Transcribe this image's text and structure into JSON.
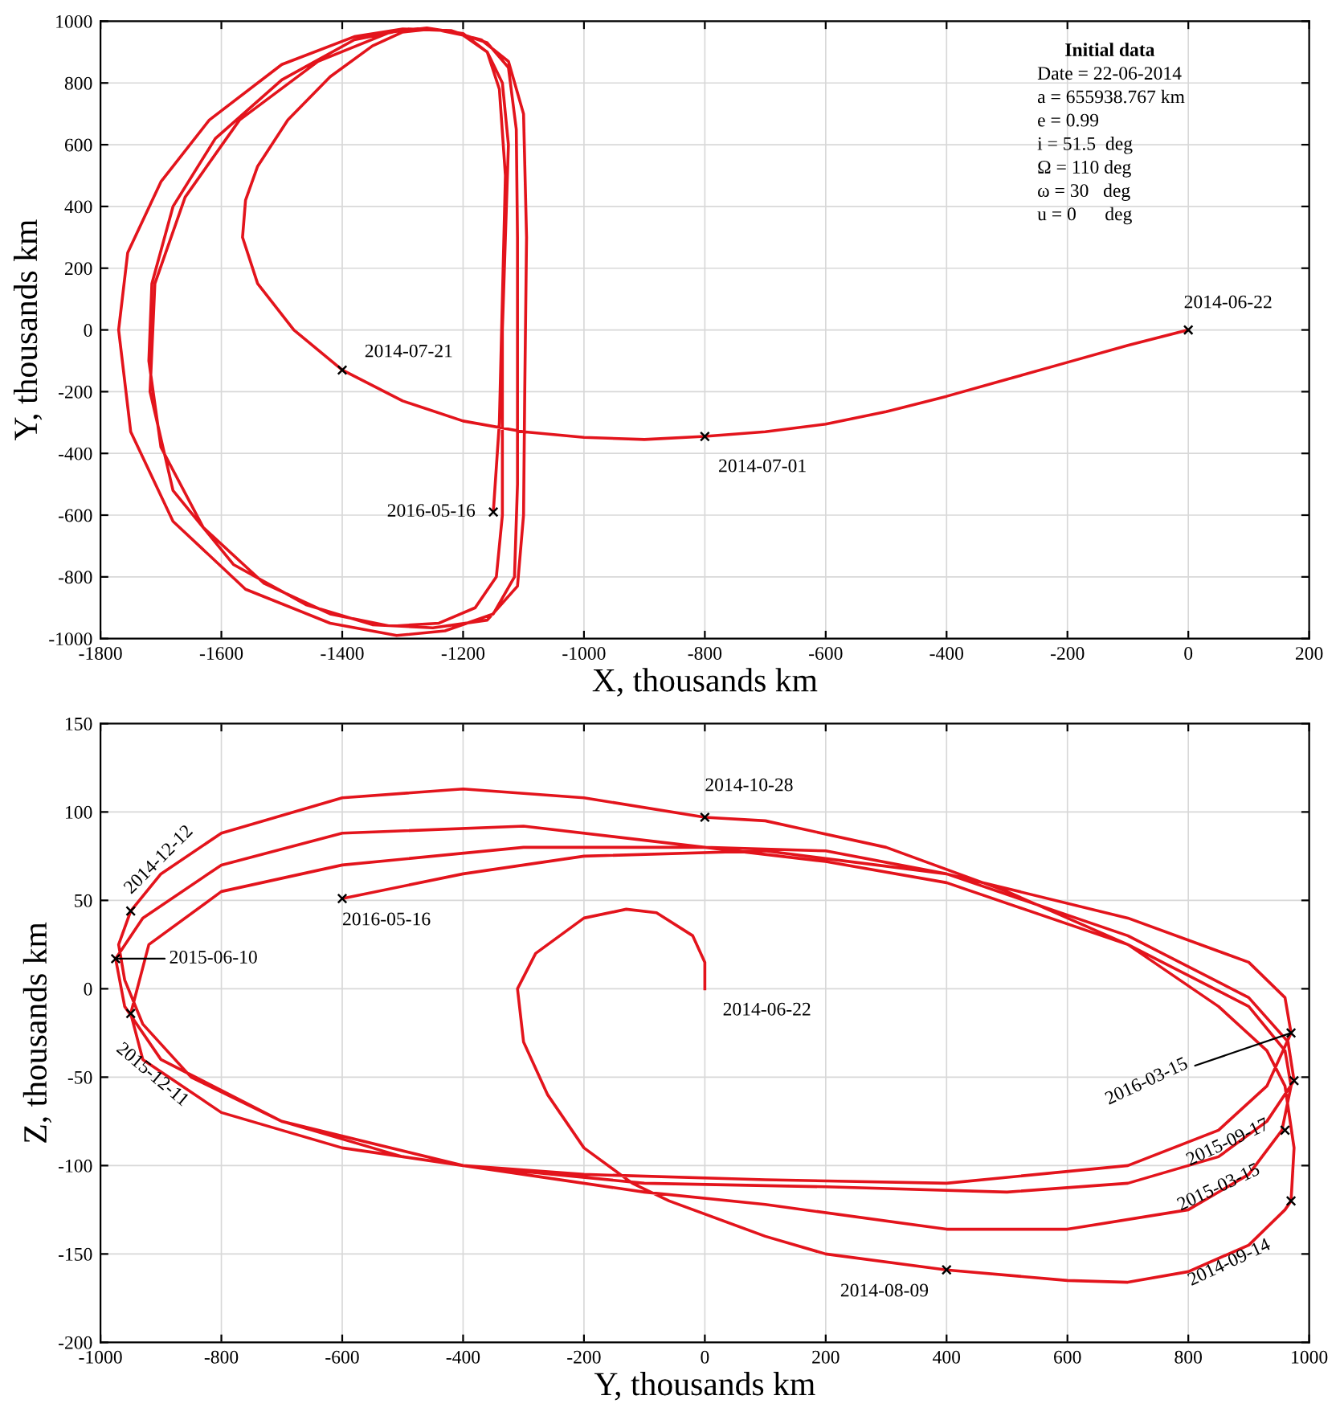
{
  "chart_data": [
    {
      "type": "line",
      "xlabel": "X, thousands km",
      "ylabel": "Y, thousands km",
      "xlim": [
        -1800,
        200
      ],
      "ylim": [
        -1000,
        1000
      ],
      "xticks": [
        -1800,
        -1600,
        -1400,
        -1200,
        -1000,
        -800,
        -600,
        -400,
        -200,
        0,
        200
      ],
      "yticks": [
        -1000,
        -800,
        -600,
        -400,
        -200,
        0,
        200,
        400,
        600,
        800,
        1000
      ],
      "grid": true,
      "legend": false,
      "series": [
        {
          "color": "#e3141c",
          "line_style": "solid",
          "marker": "none",
          "x": [
            0,
            -100,
            -200,
            -300,
            -400,
            -500,
            -600,
            -700,
            -800,
            -900,
            -1000,
            -1100,
            -1200,
            -1300,
            -1400,
            -1480,
            -1540,
            -1565,
            -1560,
            -1540,
            -1490,
            -1420,
            -1350,
            -1300,
            -1250,
            -1200,
            -1160,
            -1135,
            -1125,
            -1130,
            -1135,
            -1135,
            -1135,
            -1145,
            -1180,
            -1240,
            -1320,
            -1420,
            -1530,
            -1630,
            -1700,
            -1720,
            -1715,
            -1680,
            -1610,
            -1500,
            -1380,
            -1290,
            -1220,
            -1160,
            -1125,
            -1112,
            -1110,
            -1110,
            -1110,
            -1115,
            -1150,
            -1230,
            -1310,
            -1420,
            -1560,
            -1680,
            -1750,
            -1770,
            -1755,
            -1700,
            -1620,
            -1500,
            -1380,
            -1300,
            -1230,
            -1170,
            -1125,
            -1100,
            -1095,
            -1098,
            -1100,
            -1110,
            -1160,
            -1250,
            -1350,
            -1460,
            -1580,
            -1680,
            -1718,
            -1710,
            -1660,
            -1570,
            -1440,
            -1320,
            -1260,
            -1200,
            -1160,
            -1140,
            -1130,
            -1135,
            -1140,
            -1150
          ],
          "values": [
            0,
            -50,
            -105,
            -160,
            -215,
            -265,
            -305,
            -330,
            -345,
            -355,
            -348,
            -330,
            -295,
            -230,
            -130,
            0,
            150,
            300,
            420,
            530,
            680,
            820,
            920,
            965,
            975,
            955,
            900,
            800,
            600,
            300,
            0,
            -300,
            -600,
            -800,
            -900,
            -950,
            -960,
            -920,
            -820,
            -640,
            -380,
            -100,
            150,
            400,
            620,
            810,
            940,
            975,
            970,
            930,
            850,
            650,
            300,
            -100,
            -500,
            -800,
            -920,
            -975,
            -990,
            -950,
            -840,
            -620,
            -330,
            0,
            250,
            480,
            680,
            860,
            950,
            975,
            970,
            940,
            870,
            700,
            300,
            -200,
            -600,
            -830,
            -940,
            -965,
            -955,
            -890,
            -760,
            -520,
            -200,
            150,
            430,
            680,
            870,
            965,
            978,
            960,
            900,
            780,
            500,
            100,
            -300,
            -590
          ]
        },
        {
          "type": "scatter",
          "color": "#000000",
          "marker": "cross",
          "x": [
            0,
            -800,
            -1400,
            -1150
          ],
          "values": [
            0,
            -345,
            -130,
            -590
          ]
        }
      ],
      "annotations": [
        {
          "text": "2014-06-22",
          "x": 0,
          "y": 0
        },
        {
          "text": "2014-07-01",
          "x": -800,
          "y": -345
        },
        {
          "text": "2014-07-21",
          "x": -1400,
          "y": -130
        },
        {
          "text": "2016-05-16",
          "x": -1150,
          "y": -590
        },
        "Initial data",
        "Date = 22-06-2014",
        "a = 655938.767 km",
        "e = 0.99",
        "i = 51.5  deg",
        "Ω = 110 deg",
        "ω = 30   deg",
        "u = 0      deg"
      ]
    },
    {
      "type": "line",
      "xlabel": "Y, thousands km",
      "ylabel": "Z, thousands km",
      "xlim": [
        -1000,
        1000
      ],
      "ylim": [
        -200,
        150
      ],
      "xticks": [
        -1000,
        -800,
        -600,
        -400,
        -200,
        0,
        200,
        400,
        600,
        800,
        1000
      ],
      "yticks": [
        -200,
        -150,
        -100,
        -50,
        0,
        50,
        100,
        150
      ],
      "grid": true,
      "legend": false,
      "series": [
        {
          "color": "#e3141c",
          "line_style": "solid",
          "marker": "none",
          "x": [
            0,
            0,
            -20,
            -80,
            -130,
            -200,
            -280,
            -310,
            -300,
            -260,
            -200,
            -120,
            -59,
            100,
            200,
            400,
            600,
            700,
            800,
            900,
            960,
            970,
            975,
            960,
            930,
            850,
            700,
            500,
            300,
            100,
            0,
            -200,
            -400,
            -600,
            -800,
            -900,
            -950,
            -970,
            -960,
            -930,
            -850,
            -700,
            -500,
            -300,
            -100,
            100,
            400,
            600,
            800,
            900,
            955,
            970,
            960,
            900,
            700,
            400,
            200,
            0,
            -300,
            -600,
            -800,
            -930,
            -975,
            -960,
            -900,
            -700,
            -400,
            -100,
            200,
            500,
            700,
            850,
            930,
            975,
            965,
            900,
            700,
            400,
            200,
            0,
            -300,
            -600,
            -800,
            -920,
            -950,
            -930,
            -800,
            -600,
            -400,
            -200,
            100,
            400,
            700,
            850,
            930,
            970,
            960,
            900,
            700,
            400,
            100,
            -200,
            -400,
            -600
          ],
          "values": [
            0,
            15,
            30,
            43,
            45,
            40,
            20,
            0,
            -30,
            -60,
            -90,
            -110,
            -120,
            -140,
            -150,
            -159,
            -165,
            -166,
            -160,
            -145,
            -125,
            -120,
            -90,
            -55,
            -35,
            -10,
            25,
            55,
            80,
            95,
            97,
            108,
            113,
            108,
            88,
            65,
            44,
            25,
            5,
            -20,
            -50,
            -75,
            -95,
            -105,
            -115,
            -122,
            -136,
            -136,
            -125,
            -105,
            -80,
            -55,
            -35,
            -10,
            25,
            60,
            72,
            80,
            92,
            88,
            70,
            40,
            17,
            -10,
            -40,
            -75,
            -100,
            -110,
            -112,
            -115,
            -110,
            -95,
            -75,
            -52,
            -30,
            -5,
            30,
            65,
            78,
            80,
            80,
            70,
            55,
            25,
            -14,
            -40,
            -70,
            -90,
            -100,
            -105,
            -108,
            -110,
            -100,
            -80,
            -55,
            -25,
            -5,
            15,
            40,
            65,
            78,
            75,
            65,
            51
          ]
        },
        {
          "type": "scatter",
          "color": "#000000",
          "marker": "cross",
          "x": [
            0,
            -950,
            -975,
            -950,
            -600,
            970,
            975,
            960,
            970,
            400
          ],
          "values": [
            97,
            44,
            17,
            -14,
            51,
            -25,
            -52,
            -80,
            -120,
            -159
          ]
        }
      ],
      "annotations": [
        {
          "text": "2014-10-28",
          "x": 0,
          "y": 97
        },
        {
          "text": "2014-06-22",
          "x": 0,
          "y": 0
        },
        {
          "text": "2014-12-12",
          "x": -950,
          "y": 44
        },
        {
          "text": "2015-06-10",
          "x": -975,
          "y": 17
        },
        {
          "text": "2015-12-11",
          "x": -950,
          "y": -14
        },
        {
          "text": "2016-05-16",
          "x": -600,
          "y": 51
        },
        {
          "text": "2016-03-15",
          "x": 970,
          "y": -25
        },
        {
          "text": "2015-09-17",
          "x": 975,
          "y": -52
        },
        {
          "text": "2015-03-15",
          "x": 960,
          "y": -80
        },
        {
          "text": "2014-09-14",
          "x": 970,
          "y": -120
        },
        {
          "text": "2014-08-09",
          "x": 400,
          "y": -159
        }
      ]
    }
  ]
}
